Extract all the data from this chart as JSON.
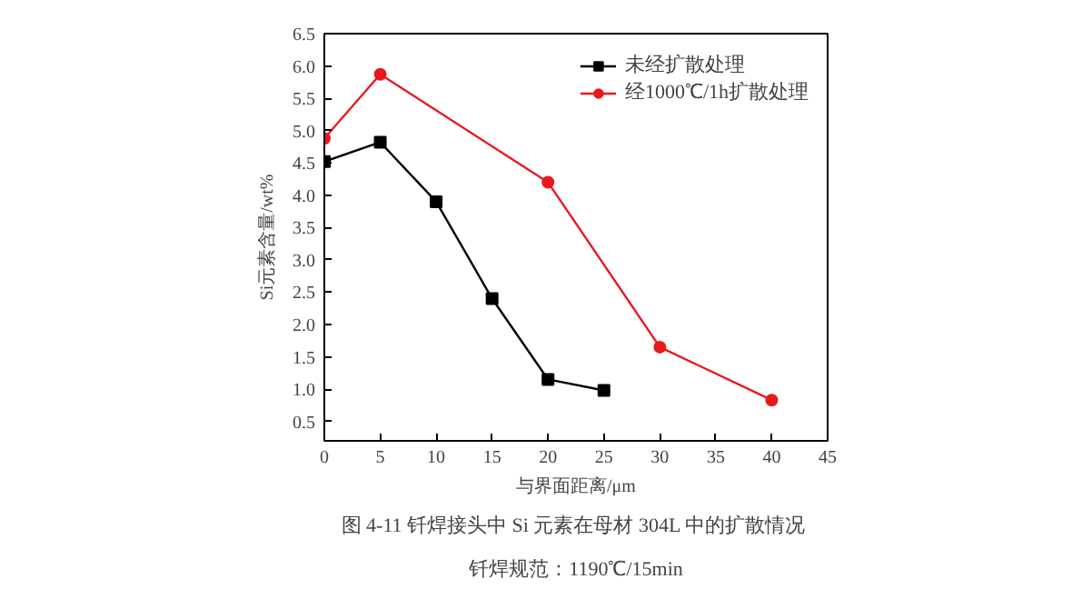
{
  "chart_data": {
    "type": "line",
    "xlabel": "与界面距离/μm",
    "ylabel": "Si元素含量/wt%",
    "x": [
      0,
      5,
      10,
      15,
      20,
      25
    ],
    "series": [
      {
        "name": "未经扩散处理",
        "color": "#000000",
        "marker": "square",
        "values": [
          4.52,
          4.82,
          3.9,
          2.4,
          1.15,
          0.98
        ]
      },
      {
        "name": "经1000℃/1h扩散处理",
        "color": "#e8191e",
        "marker": "circle",
        "x": [
          0,
          5,
          20,
          30,
          40
        ],
        "values": [
          4.88,
          5.87,
          4.2,
          1.65,
          0.83
        ]
      }
    ],
    "xlim": [
      0,
      45
    ],
    "xticks": [
      0,
      5,
      10,
      15,
      20,
      25,
      30,
      35,
      40,
      45
    ],
    "ylim": [
      0.2,
      6.5
    ],
    "yticks": [
      0.5,
      {
        "value": 1,
        "label": "1.0"
      },
      1.5,
      {
        "value": 2,
        "label": "2.0"
      },
      2.5,
      {
        "value": 3,
        "label": "3.0"
      },
      3.5,
      {
        "value": 4,
        "label": "4.0"
      },
      4.5,
      {
        "value": 5,
        "label": "5.0"
      },
      5.5,
      {
        "value": 6,
        "label": "6.0"
      },
      6.5
    ],
    "legend": "top right",
    "grid": false,
    "line_style": "solid",
    "annotations": [
      "图 4-11  钎焊接头中 Si 元素在母材 304L 中的扩散情况",
      "钎焊规范：1190℃/15min"
    ]
  }
}
